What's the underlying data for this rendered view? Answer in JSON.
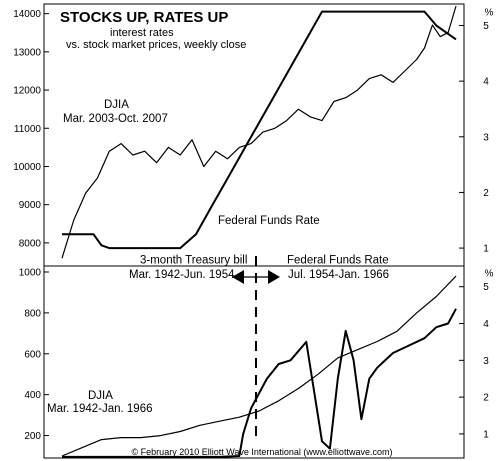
{
  "chart_data": [
    {
      "type": "line",
      "title": "STOCKS UP, RATES UP",
      "subtitle_line1": "interest rates",
      "subtitle_line2": "vs. stock market prices, weekly close",
      "left_axis": {
        "ticks": [
          8000,
          9000,
          10000,
          11000,
          12000,
          13000,
          14000
        ],
        "range": [
          7500,
          14200
        ]
      },
      "right_axis": {
        "unit_label": "%",
        "ticks": [
          1,
          2,
          3,
          4,
          5
        ],
        "range": [
          0.75,
          5.35
        ]
      },
      "series": [
        {
          "name": "DJIA",
          "label_line1": "DJIA",
          "label_line2": "Mar. 2003-Oct. 2007",
          "axis": "left",
          "x": [
            0,
            0.03,
            0.06,
            0.09,
            0.12,
            0.15,
            0.18,
            0.21,
            0.24,
            0.27,
            0.3,
            0.33,
            0.36,
            0.39,
            0.42,
            0.45,
            0.48,
            0.51,
            0.54,
            0.57,
            0.6,
            0.63,
            0.66,
            0.69,
            0.72,
            0.75,
            0.78,
            0.81,
            0.84,
            0.87,
            0.9,
            0.92,
            0.94,
            0.96,
            0.98,
            1.0
          ],
          "values": [
            7600,
            8600,
            9300,
            9700,
            10400,
            10600,
            10300,
            10400,
            10100,
            10500,
            10300,
            10700,
            10000,
            10400,
            10200,
            10500,
            10600,
            10900,
            11000,
            11200,
            11500,
            11300,
            11200,
            11700,
            11800,
            12000,
            12300,
            12400,
            12200,
            12500,
            12800,
            13100,
            13700,
            13400,
            13500,
            14200
          ]
        },
        {
          "name": "Federal Funds Rate",
          "axis": "right",
          "x": [
            0,
            0.08,
            0.1,
            0.12,
            0.2,
            0.25,
            0.3,
            0.34,
            0.38,
            0.42,
            0.46,
            0.5,
            0.54,
            0.58,
            0.62,
            0.66,
            0.7,
            0.74,
            0.78,
            0.92,
            0.95,
            1.0
          ],
          "values": [
            1.25,
            1.25,
            1.05,
            1.0,
            1.0,
            1.0,
            1.0,
            1.25,
            1.75,
            2.25,
            2.75,
            3.25,
            3.75,
            4.25,
            4.75,
            5.25,
            5.25,
            5.25,
            5.25,
            5.25,
            5.0,
            4.75
          ]
        }
      ],
      "series_labels": {
        "rate": "Federal Funds Rate"
      }
    },
    {
      "type": "line",
      "left_axis": {
        "ticks": [
          200,
          400,
          600,
          800,
          1000
        ],
        "range": [
          100,
          1000
        ]
      },
      "right_axis": {
        "unit_label": "%",
        "ticks": [
          1,
          2,
          3,
          4,
          5
        ],
        "range": [
          0.4,
          5.4
        ]
      },
      "series": [
        {
          "name": "DJIA",
          "label_line1": "DJIA",
          "label_line2": "Mar. 1942-Jan. 1966",
          "axis": "left",
          "x": [
            0,
            0.05,
            0.1,
            0.15,
            0.2,
            0.25,
            0.3,
            0.35,
            0.4,
            0.45,
            0.5,
            0.55,
            0.6,
            0.65,
            0.7,
            0.75,
            0.8,
            0.85,
            0.9,
            0.95,
            1.0
          ],
          "values": [
            100,
            140,
            180,
            190,
            190,
            200,
            220,
            250,
            270,
            290,
            320,
            370,
            430,
            500,
            580,
            620,
            660,
            710,
            800,
            880,
            980
          ]
        },
        {
          "name": "Interest rate",
          "axis": "right",
          "x": [
            0,
            0.1,
            0.2,
            0.3,
            0.4,
            0.45,
            0.46,
            0.48,
            0.52,
            0.55,
            0.58,
            0.62,
            0.66,
            0.68,
            0.7,
            0.72,
            0.74,
            0.76,
            0.78,
            0.8,
            0.84,
            0.88,
            0.92,
            0.95,
            0.98,
            1.0
          ],
          "values": [
            0.375,
            0.375,
            0.375,
            0.375,
            0.375,
            0.4,
            1.0,
            1.7,
            2.5,
            2.9,
            3.0,
            3.5,
            0.8,
            0.6,
            2.5,
            3.8,
            3.0,
            1.4,
            2.5,
            2.8,
            3.2,
            3.4,
            3.6,
            3.9,
            4.0,
            4.4
          ]
        }
      ],
      "annotations": {
        "left_line1": "3-month Treasury bill",
        "left_line2": "Mar. 1942-Jun. 1954",
        "right_line1": "Federal Funds Rate",
        "right_line2": "Jul. 1954-Jan. 1966"
      },
      "credit": "© February 2010 Elliott Wave International (www.elliottwave.com)"
    }
  ]
}
